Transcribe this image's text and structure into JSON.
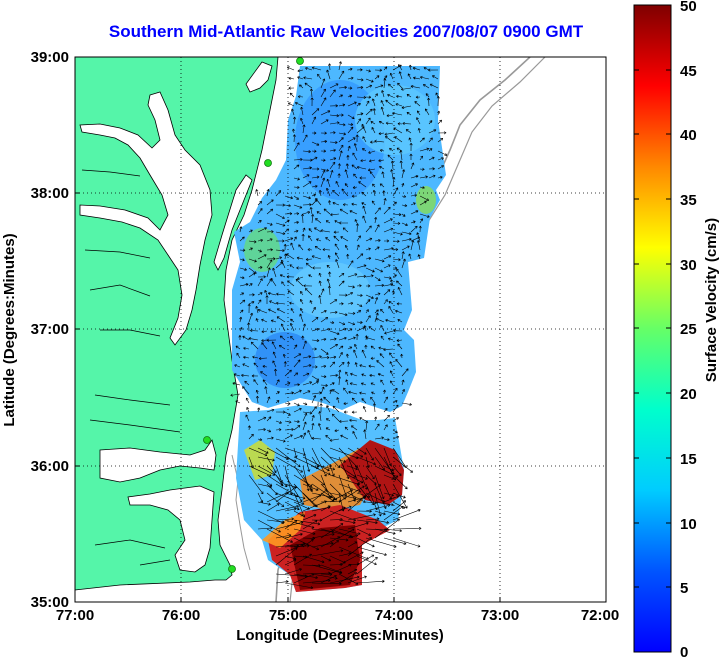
{
  "title": "Southern Mid-Atlantic Raw Velocities 2007/08/07 0900 GMT",
  "map": {
    "xlabel": "Longitude (Degrees:Minutes)",
    "ylabel": "Latitude (Degrees:Minutes)",
    "xlim": [
      -77,
      -72
    ],
    "ylim": [
      35,
      39
    ],
    "x_ticks": [
      "77:00",
      "76:00",
      "75:00",
      "74:00",
      "73:00",
      "72:00"
    ],
    "y_ticks": [
      "39:00",
      "38:00",
      "37:00",
      "36:00",
      "35:00"
    ],
    "grid": "dotted",
    "colors": {
      "land": "#55f5a9",
      "coast": "#000000",
      "bathymetry": "#999999",
      "arrows": "#000000",
      "stations": "#22dd22"
    }
  },
  "colorbar": {
    "label": "Surface Velocity (cm/s)",
    "ticks": [
      "0",
      "5",
      "10",
      "15",
      "20",
      "25",
      "30",
      "35",
      "40",
      "45",
      "50"
    ],
    "range": [
      0,
      50
    ],
    "colormap": "jet"
  }
}
